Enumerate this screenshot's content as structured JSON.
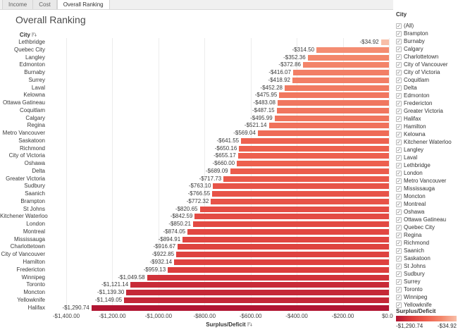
{
  "title": "Overall Ranking",
  "tabs": [
    {
      "label": "Income",
      "active": false
    },
    {
      "label": "Cost",
      "active": false
    },
    {
      "label": "Overall Ranking",
      "active": true
    }
  ],
  "chart_data": {
    "type": "bar",
    "orientation": "horizontal",
    "title": "Overall Ranking",
    "row_header": "City",
    "xlabel": "Surplus/Deficit",
    "xlim": [
      -1400,
      0
    ],
    "x_ticks": [
      "-$1,400.00",
      "-$1,200.00",
      "-$1,000.00",
      "-$800.00",
      "-$600.00",
      "-$400.00",
      "-$200.00",
      "$0.00"
    ],
    "grid": true,
    "categories": [
      "Lethbridge",
      "Quebec City",
      "Langley",
      "Edmonton",
      "Burnaby",
      "Surrey",
      "Laval",
      "Kelowna",
      "Ottawa Gatineau",
      "Coquitlam",
      "Calgary",
      "Regina",
      "Metro Vancouver",
      "Saskatoon",
      "Richmond",
      "City of Victoria",
      "Oshawa",
      "Delta",
      "Greater Victoria",
      "Sudbury",
      "Saanich",
      "Brampton",
      "St Johns",
      "Kitchener Waterloo",
      "London",
      "Montreal",
      "Mississauga",
      "Charlottetown",
      "City of Vancouver",
      "Hamilton",
      "Fredericton",
      "Winnipeg",
      "Toronto",
      "Moncton",
      "Yellowknife",
      "Halifax"
    ],
    "values": [
      -34.92,
      -314.5,
      -352.36,
      -372.86,
      -416.07,
      -418.92,
      -452.28,
      -475.95,
      -483.08,
      -487.15,
      -495.99,
      -521.14,
      -569.04,
      -641.55,
      -650.16,
      -655.17,
      -660.0,
      -689.09,
      -717.73,
      -763.1,
      -766.55,
      -772.32,
      -820.65,
      -842.59,
      -850.21,
      -874.05,
      -894.91,
      -916.67,
      -922.85,
      -932.14,
      -959.13,
      -1049.58,
      -1121.14,
      -1139.3,
      -1149.05,
      -1290.74
    ],
    "value_labels": [
      "-$34.92",
      "-$314.50",
      "-$352.36",
      "-$372.86",
      "-$416.07",
      "-$418.92",
      "-$452.28",
      "-$475.95",
      "-$483.08",
      "-$487.15",
      "-$495.99",
      "-$521.14",
      "-$569.04",
      "-$641.55",
      "-$650.16",
      "-$655.17",
      "-$660.00",
      "-$689.09",
      "-$717.73",
      "-$763.10",
      "-$766.55",
      "-$772.32",
      "-$820.65",
      "-$842.59",
      "-$850.21",
      "-$874.05",
      "-$894.91",
      "-$916.67",
      "-$922.85",
      "-$932.14",
      "-$959.13",
      "-$1,049.58",
      "-$1,121.14",
      "-$1,139.30",
      "-$1,149.05",
      "-$1,290.74"
    ],
    "color_scale": {
      "stops_light_to_dark": [
        "#f8bea8",
        "#f3876b",
        "#ed5f4e",
        "#db3c3c",
        "#b11532"
      ],
      "abs_domain": [
        34.92,
        1290.74
      ]
    }
  },
  "filter_panel": {
    "header": "City",
    "all_checked": true,
    "check_glyph": "✓",
    "items": [
      "(All)",
      "Brampton",
      "Burnaby",
      "Calgary",
      "Charlottetown",
      "City of Vancouver",
      "City of Victoria",
      "Coquitlam",
      "Delta",
      "Edmonton",
      "Fredericton",
      "Greater Victoria",
      "Halifax",
      "Hamilton",
      "Kelowna",
      "Kitchener Waterloo",
      "Langley",
      "Laval",
      "Lethbridge",
      "London",
      "Metro Vancouver",
      "Mississauga",
      "Moncton",
      "Montreal",
      "Oshawa",
      "Ottawa Gatineau",
      "Quebec City",
      "Regina",
      "Richmond",
      "Saanich",
      "Saskatoon",
      "St Johns",
      "Sudbury",
      "Surrey",
      "Toronto",
      "Winnipeg",
      "Yellowknife"
    ]
  },
  "legend": {
    "title": "Surplus/Deficit",
    "min_label": "-$1,290.74",
    "max_label": "-$34.92"
  }
}
